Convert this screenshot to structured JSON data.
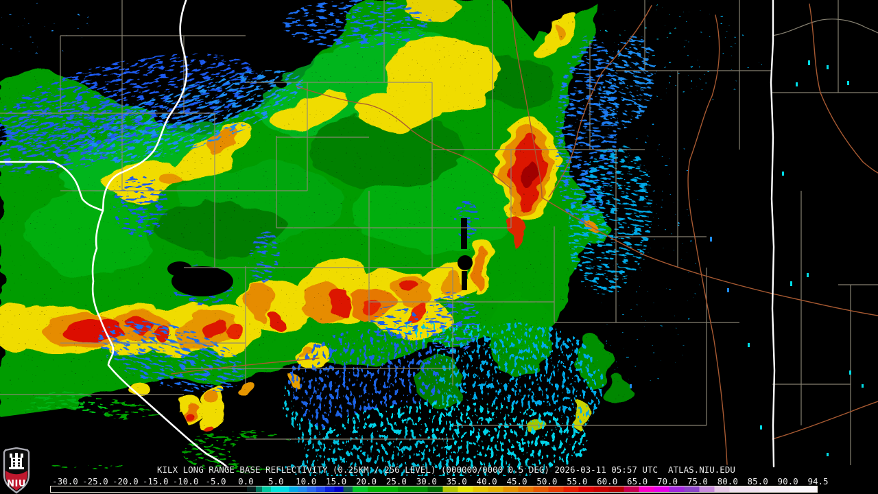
{
  "product": {
    "title": "KILX LONG RANGE BASE REFLECTIVITY (0.25KM / 256 LEVEL) (000000/0000 0.5 DEG) 2026-03-11 05:57 UTC  ATLAS.NIU.EDU",
    "radar_site": "KILX",
    "product_name": "LONG RANGE BASE REFLECTIVITY",
    "resolution": "0.25KM / 256 LEVEL",
    "volume_sequence": "000000/0000",
    "elevation_angle": "0.5 DEG",
    "timestamp": "2026-03-11 05:57 UTC",
    "source": "ATLAS.NIU.EDU"
  },
  "colorbar": {
    "ticks": [
      "-30.0",
      "-25.0",
      "-20.0",
      "-15.0",
      "-10.0",
      "-5.0",
      "0.0",
      "5.0",
      "10.0",
      "15.0",
      "20.0",
      "25.0",
      "30.0",
      "35.0",
      "40.0",
      "45.0",
      "50.0",
      "55.0",
      "60.0",
      "65.0",
      "70.0",
      "75.0",
      "80.0",
      "85.0",
      "90.0",
      "94.5"
    ],
    "range_min": -32.5,
    "range_max": 94.5,
    "stops": [
      {
        "v": -32.5,
        "c": "#000000"
      },
      {
        "v": 0,
        "c": "#061E1E"
      },
      {
        "v": 1.5,
        "c": "#00785F"
      },
      {
        "v": 2.5,
        "c": "#00C8A0"
      },
      {
        "v": 4,
        "c": "#00E6DC"
      },
      {
        "v": 5.5,
        "c": "#00DCE6"
      },
      {
        "v": 7,
        "c": "#00AAE8"
      },
      {
        "v": 8.5,
        "c": "#1E8CF0"
      },
      {
        "v": 10,
        "c": "#2868F0"
      },
      {
        "v": 11.5,
        "c": "#1E46EB"
      },
      {
        "v": 13,
        "c": "#0A1EDC"
      },
      {
        "v": 14.5,
        "c": "#0000C8"
      },
      {
        "v": 16,
        "c": "#0F5A50"
      },
      {
        "v": 17.5,
        "c": "#00C828"
      },
      {
        "v": 20,
        "c": "#00B400"
      },
      {
        "v": 25,
        "c": "#009600"
      },
      {
        "v": 30,
        "c": "#006E00"
      },
      {
        "v": 32.5,
        "c": "#B4C800"
      },
      {
        "v": 35,
        "c": "#E6E600"
      },
      {
        "v": 37.5,
        "c": "#E6C800"
      },
      {
        "v": 40,
        "c": "#E6B400"
      },
      {
        "v": 42.5,
        "c": "#E69600"
      },
      {
        "v": 45,
        "c": "#E67800"
      },
      {
        "v": 47.5,
        "c": "#E65A00"
      },
      {
        "v": 50,
        "c": "#E63C00"
      },
      {
        "v": 52.5,
        "c": "#E61E00"
      },
      {
        "v": 55,
        "c": "#DC0000"
      },
      {
        "v": 57.5,
        "c": "#C80000"
      },
      {
        "v": 60,
        "c": "#B40000"
      },
      {
        "v": 62.5,
        "c": "#C80050"
      },
      {
        "v": 65,
        "c": "#FA00C8"
      },
      {
        "v": 67.5,
        "c": "#E600E6"
      },
      {
        "v": 70,
        "c": "#A028DC"
      },
      {
        "v": 72.5,
        "c": "#8C46C8"
      },
      {
        "v": 75,
        "c": "#C88CDC"
      },
      {
        "v": 77.5,
        "c": "#E6C8E6"
      },
      {
        "v": 80,
        "c": "#F0E1F0"
      },
      {
        "v": 85,
        "c": "#F5EDF5"
      },
      {
        "v": 90,
        "c": "#FAF6FA"
      }
    ]
  },
  "logo": {
    "text": "NIU"
  },
  "colors": {
    "bg": "#000000",
    "county": "#8E8878",
    "road": "#A85A32",
    "water": "#FFFFFF",
    "text": "#ECECEC",
    "logo-red": "#C0182E",
    "logo-border": "#ACACB4"
  }
}
